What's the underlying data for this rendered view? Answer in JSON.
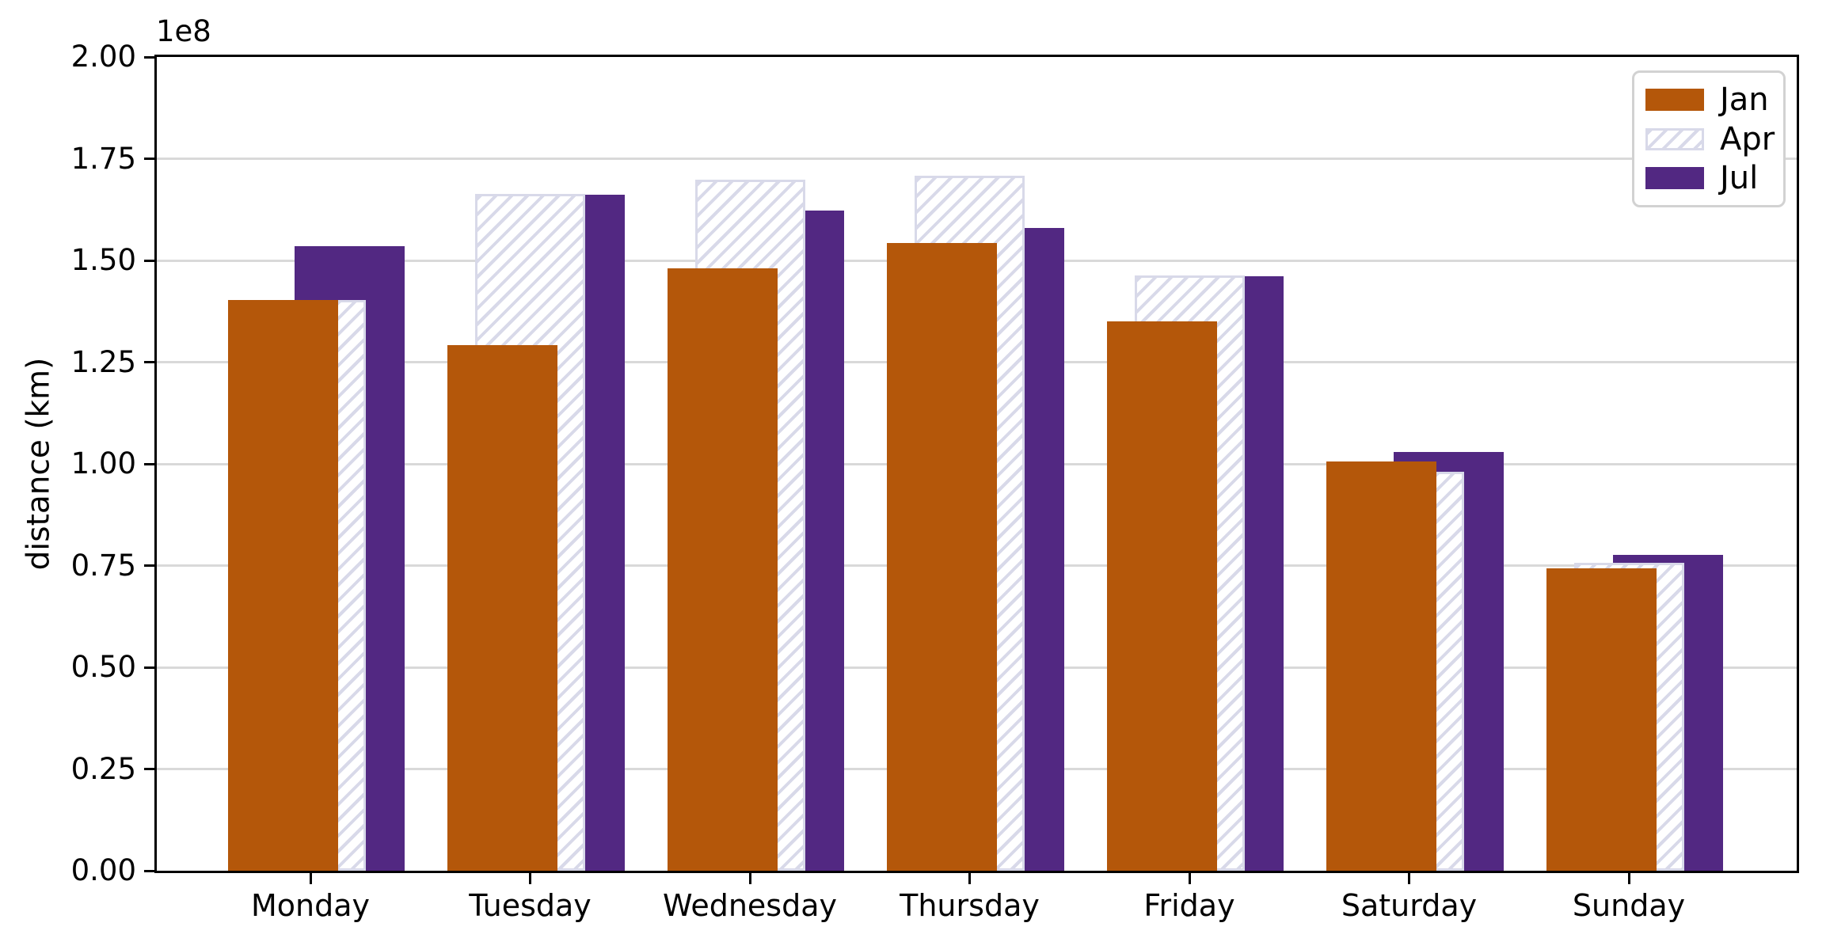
{
  "chart_data": {
    "type": "bar",
    "title": "",
    "xlabel": "",
    "ylabel": "distance (km)",
    "offset_text": "1e8",
    "categories": [
      "Monday",
      "Tuesday",
      "Wednesday",
      "Thursday",
      "Friday",
      "Saturday",
      "Sunday"
    ],
    "series": [
      {
        "name": "Jan",
        "style": "solid",
        "color": "#b4570a",
        "values": [
          140300000,
          129200000,
          148000000,
          154200000,
          135000000,
          100600000,
          74300000
        ]
      },
      {
        "name": "Apr",
        "style": "hatched",
        "hatch": "//",
        "color": "#d8d9e9",
        "values": [
          140200000,
          166300000,
          169800000,
          170800000,
          146400000,
          98100000,
          75600000
        ]
      },
      {
        "name": "Jul",
        "style": "solid",
        "color": "#522882",
        "values": [
          153500000,
          166100000,
          162200000,
          158000000,
          146200000,
          102900000,
          77600000
        ]
      }
    ],
    "ylim": [
      0,
      200000000
    ],
    "ytick_values": [
      0,
      25000000,
      50000000,
      75000000,
      100000000,
      125000000,
      150000000,
      175000000,
      200000000
    ],
    "ytick_labels": [
      "0.00",
      "0.25",
      "0.50",
      "0.75",
      "1.00",
      "1.25",
      "1.50",
      "1.75",
      "2.00"
    ],
    "grid": "horizontal",
    "grid_color": "#d9d9d9",
    "legend": {
      "position": "upper right",
      "entries": [
        "Jan",
        "Apr",
        "Jul"
      ]
    }
  }
}
